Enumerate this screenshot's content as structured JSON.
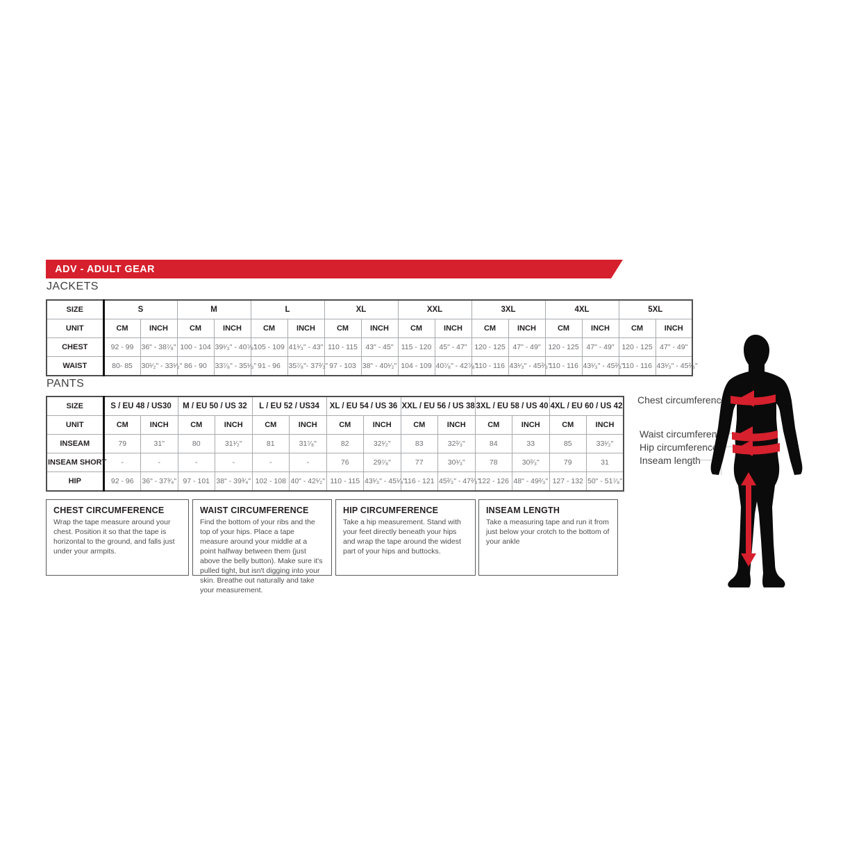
{
  "banner": {
    "title": "ADV - ADULT GEAR",
    "color": "#d6202d"
  },
  "jackets": {
    "section_label": "JACKETS",
    "size_label": "SIZE",
    "unit_label": "UNIT",
    "cm_label": "CM",
    "inch_label": "INCH",
    "sizes": [
      "S",
      "M",
      "L",
      "XL",
      "XXL",
      "3XL",
      "4XL",
      "5XL"
    ],
    "rows": [
      {
        "label": "CHEST",
        "cells": [
          [
            "92 - 99",
            "36\" - 38⁷⁄₈\""
          ],
          [
            "100 - 104",
            "39¹⁄₃\" - 40⁷⁄₈\""
          ],
          [
            "105 - 109",
            "41¹⁄₃\" - 43\""
          ],
          [
            "110 - 115",
            "43\" - 45\""
          ],
          [
            "115 - 120",
            "45\" - 47\""
          ],
          [
            "120 - 125",
            "47\" - 49\""
          ],
          [
            "120 - 125",
            "47\" - 49\""
          ],
          [
            "120 - 125",
            "47\" - 49\""
          ]
        ]
      },
      {
        "label": "WAIST",
        "cells": [
          [
            "80- 85",
            "30¹⁄₂\" - 33¹⁄₂\""
          ],
          [
            "86 - 90",
            "33⁷⁄₈\" - 35¹⁄₃\""
          ],
          [
            "91 - 96",
            "35⁷⁄₈\"- 37²⁄₃\""
          ],
          [
            "97 - 103",
            "38\" - 40¹⁄₂\""
          ],
          [
            "104 - 109",
            "40⁷⁄₈\" - 42⁷⁄₈\""
          ],
          [
            "110 - 116",
            "43¹⁄₃\" - 45²⁄₃\""
          ],
          [
            "110 - 116",
            "43¹⁄₃\" - 45²⁄₃\""
          ],
          [
            "110 - 116",
            "43¹⁄₃\" - 45²⁄₃\""
          ]
        ]
      }
    ]
  },
  "pants": {
    "section_label": "PANTS",
    "size_label": "SIZE",
    "unit_label": "UNIT",
    "cm_label": "CM",
    "inch_label": "INCH",
    "sizes": [
      "S / EU 48 / US30",
      "M / EU 50 / US 32",
      "L / EU 52 / US34",
      "XL / EU 54 / US 36",
      "XXL / EU 56 / US 38",
      "3XL / EU 58 / US 40",
      "4XL / EU 60 / US 42"
    ],
    "rows": [
      {
        "label": "INSEAM",
        "cells": [
          [
            "79",
            "31\""
          ],
          [
            "80",
            "31¹⁄₂\""
          ],
          [
            "81",
            "31⁷⁄₈\""
          ],
          [
            "82",
            "32¹⁄₂\""
          ],
          [
            "83",
            "32²⁄₃\""
          ],
          [
            "84",
            "33"
          ],
          [
            "85",
            "33¹⁄₂\""
          ]
        ]
      },
      {
        "label": "INSEAM SHORT",
        "cells": [
          [
            "-",
            "-"
          ],
          [
            "-",
            "-"
          ],
          [
            "-",
            "-"
          ],
          [
            "76",
            "29⁷⁄₈\""
          ],
          [
            "77",
            "30¹⁄₃\""
          ],
          [
            "78",
            "30²⁄₃\""
          ],
          [
            "79",
            "31"
          ]
        ]
      },
      {
        "label": "HIP",
        "cells": [
          [
            "92 - 96",
            "36\" - 37³⁄₄\""
          ],
          [
            "97 - 101",
            "38\" - 39³⁄₄\""
          ],
          [
            "102 - 108",
            "40\" - 42¹⁄₂\""
          ],
          [
            "110 - 115",
            "43¹⁄₃\" - 45¹⁄₄\""
          ],
          [
            "116 - 121",
            "45²⁄₃\" - 47²⁄₃\""
          ],
          [
            "122 - 126",
            "48\" - 49²⁄₃\""
          ],
          [
            "127 - 132",
            "50\" - 51⁷⁄₈\""
          ]
        ]
      }
    ]
  },
  "instructions": [
    {
      "title": "CHEST CIRCUMFERENCE",
      "body": "Wrap the tape measure around your chest. Position it so that the tape is horizontal to the ground, and falls just under your armpits."
    },
    {
      "title": "WAIST CIRCUMFERENCE",
      "body": "Find the bottom of your ribs and the top of your hips. Place a tape measure around your middle at a point halfway between them (just above the belly button). Make sure it's pulled tight, but isn't digging into your skin. Breathe out naturally and take your measurement."
    },
    {
      "title": "HIP CIRCUMFERENCE",
      "body": "Take a hip measurement. Stand with your feet directly beneath your hips and wrap the tape around the widest part of your hips and buttocks."
    },
    {
      "title": "INSEAM LENGTH",
      "body": "Take a measuring tape and run it from just below your crotch to the bottom of your ankle"
    }
  ],
  "figure": {
    "labels": [
      "Chest circumference",
      "Waist circumference",
      "Hip circumference",
      "Inseam length"
    ],
    "accent_color": "#d6202d",
    "silhouette_color": "#0b0b0b"
  }
}
